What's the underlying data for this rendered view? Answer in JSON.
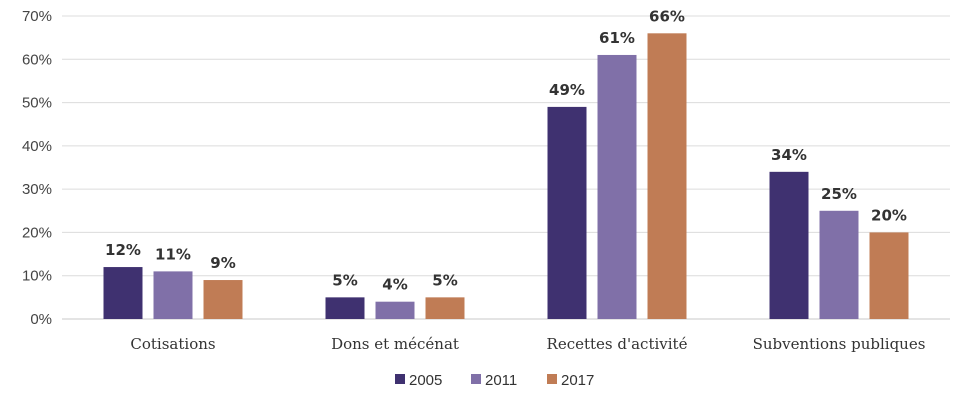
{
  "chart_data": {
    "type": "bar",
    "categories": [
      "Cotisations",
      "Dons et mécénat",
      "Recettes d'activité",
      "Subventions publiques"
    ],
    "series": [
      {
        "name": "2005",
        "values": [
          12,
          5,
          49,
          34
        ],
        "labels": [
          "12%",
          "5%",
          "49%",
          "34%"
        ],
        "color": "#3f3170"
      },
      {
        "name": "2011",
        "values": [
          11,
          4,
          61,
          25
        ],
        "labels": [
          "11%",
          "4%",
          "61%",
          "25%"
        ],
        "color": "#8070a8"
      },
      {
        "name": "2017",
        "values": [
          9,
          5,
          66,
          20
        ],
        "labels": [
          "9%",
          "5%",
          "66%",
          "20%"
        ],
        "color": "#c07c55"
      }
    ],
    "yticks": [
      "0%",
      "10%",
      "20%",
      "30%",
      "40%",
      "50%",
      "60%",
      "70%"
    ],
    "ylim": [
      0,
      70
    ],
    "grid": true,
    "legend_position": "bottom"
  }
}
